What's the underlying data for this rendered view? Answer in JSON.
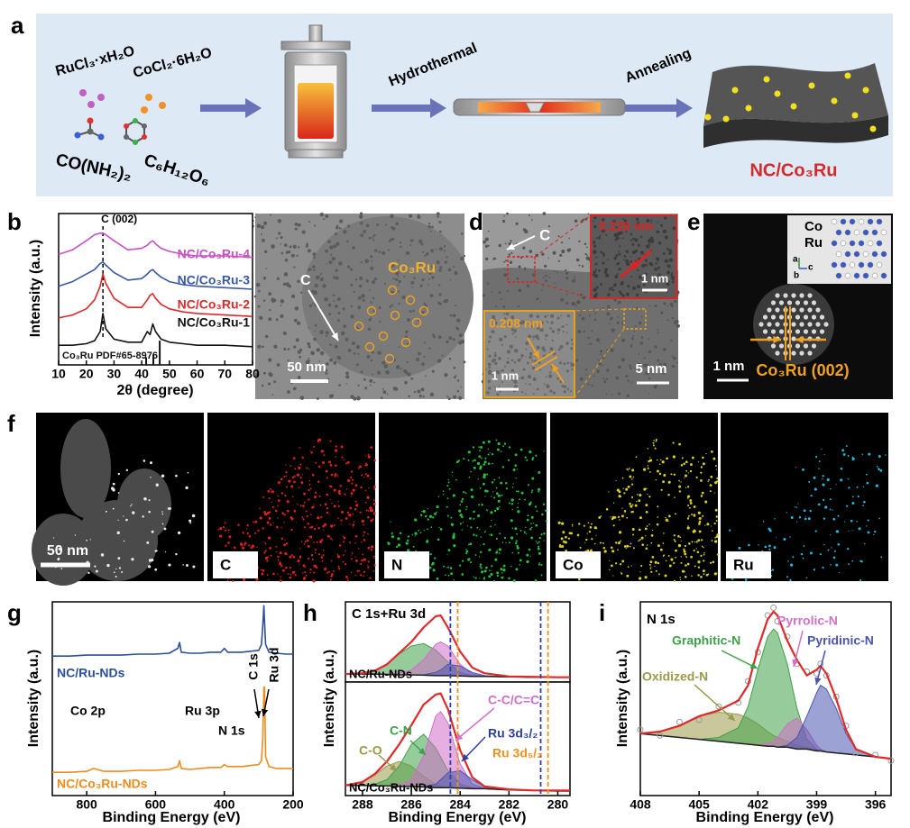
{
  "figure": {
    "panel_labels": [
      "a",
      "b",
      "c",
      "d",
      "e",
      "f",
      "g",
      "h",
      "i"
    ],
    "a": {
      "reagents": [
        "RuCl₃·xH₂O",
        "CoCl₂·6H₂O",
        "CO(NH₂)₂",
        "C₆H₁₂O₆"
      ],
      "steps": [
        "Hydrothermal",
        "Annealing"
      ],
      "product": "NC/Co₃Ru"
    },
    "c": {
      "labels": [
        "C",
        "Co₃Ru"
      ],
      "scale_bar": "50 nm"
    },
    "d": {
      "labels": [
        "C"
      ],
      "lattice": [
        "0.226 nm",
        "0.208 nm"
      ],
      "scale_bars": [
        "1 nm",
        "1 nm",
        "5 nm"
      ]
    },
    "e": {
      "legend": [
        "Co",
        "Ru"
      ],
      "axes": [
        "a",
        "c",
        "b"
      ],
      "scale_bar": "1 nm",
      "plane": "Co₃Ru (002)"
    },
    "f": {
      "scale_bar": "50 nm",
      "maps": [
        "C",
        "N",
        "Co",
        "Ru"
      ]
    },
    "g_labels": [
      "Co 2p",
      "Ru 3p",
      "N 1s",
      "C 1s",
      "Ru 3d"
    ]
  },
  "chart_data": [
    {
      "type": "line",
      "xlabel": "2θ (degree)",
      "ylabel": "Intensity (a.u.)",
      "xlim": [
        10,
        80
      ],
      "ylim": [
        0,
        100
      ],
      "xticks": [
        10,
        20,
        30,
        40,
        50,
        60,
        70,
        80
      ],
      "annotation": "C (002)",
      "annotation_x": 26,
      "x": [
        10,
        15,
        20,
        23,
        25,
        26,
        27,
        30,
        35,
        40,
        42,
        43,
        44,
        45,
        47,
        50,
        55,
        60,
        70,
        80
      ],
      "series": [
        {
          "name": "NC/Co₃Ru-4",
          "color": "#c851c6",
          "values": [
            73,
            76,
            82,
            86,
            87,
            87,
            86,
            82,
            76,
            77,
            79,
            81,
            82,
            80,
            77,
            75,
            73,
            72,
            72,
            71
          ]
        },
        {
          "name": "NC/Co₃Ru-3",
          "color": "#3a57a7",
          "values": [
            52,
            55,
            60,
            63,
            67,
            68,
            66,
            61,
            56,
            57,
            60,
            62,
            63,
            61,
            58,
            55,
            53,
            52,
            51,
            50
          ]
        },
        {
          "name": "NC/Co₃Ru-2",
          "color": "#e02828",
          "values": [
            31,
            33,
            37,
            43,
            52,
            60,
            54,
            44,
            38,
            38,
            43,
            46,
            47,
            44,
            40,
            37,
            35,
            34,
            33,
            32
          ]
        },
        {
          "name": "NC/Co₃Ru-1",
          "color": "#111111",
          "values": [
            13,
            13,
            14,
            16,
            22,
            34,
            24,
            17,
            15,
            15,
            22,
            20,
            27,
            22,
            17,
            15,
            14,
            13,
            13,
            12
          ]
        }
      ],
      "reference": {
        "label": "Co₃Ru PDF#65-8976",
        "color": "#111111",
        "x": [
          41.6,
          44.2,
          46.5
        ],
        "values": [
          5,
          7,
          16
        ]
      }
    },
    {
      "type": "line",
      "xlabel": "Binding Energy (eV)",
      "ylabel": "Intensity (a.u.)",
      "xlim": [
        900,
        200
      ],
      "ylim": [
        0,
        100
      ],
      "xticks": [
        800,
        600,
        400,
        200
      ],
      "x": [
        900,
        850,
        800,
        780,
        750,
        700,
        650,
        600,
        560,
        535,
        530,
        525,
        500,
        470,
        440,
        410,
        400,
        390,
        350,
        300,
        292,
        288,
        285,
        283,
        280,
        270,
        250,
        220,
        200
      ],
      "series": [
        {
          "name": "NC/Ru-NDs",
          "color": "#2b4f9a",
          "values": [
            72,
            72,
            72.5,
            72.5,
            72.5,
            72.5,
            73,
            73,
            73.5,
            76,
            79,
            74,
            73.5,
            73.5,
            74,
            74,
            76,
            74,
            74,
            75,
            78,
            88,
            98,
            90,
            78,
            74,
            73.5,
            73,
            73
          ]
        },
        {
          "name": "NC/Co₃Ru-NDs",
          "color": "#f08c1e",
          "values": [
            12,
            12,
            12.5,
            14,
            12.5,
            12.5,
            13,
            13,
            13.5,
            15,
            18,
            14,
            13.5,
            14,
            14.5,
            14.5,
            16,
            15,
            15,
            16,
            18,
            30,
            56,
            56,
            20,
            15,
            14,
            14,
            14
          ]
        }
      ]
    },
    {
      "type": "line",
      "label": "C 1s+Ru 3d",
      "sample": "NC/Ru-NDs",
      "xlim": [
        288.7,
        279.5
      ],
      "ylim": [
        0,
        100
      ],
      "x": [
        288.7,
        288,
        287.5,
        287,
        286.5,
        286,
        285.5,
        285,
        284.8,
        284.5,
        284,
        283.5,
        283,
        282,
        281,
        280,
        279.5
      ],
      "baseline": {
        "color": "#222222",
        "values": [
          10,
          10,
          10,
          9.5,
          9,
          9,
          8.5,
          8,
          8,
          8,
          7.5,
          7,
          7,
          6.5,
          6,
          6,
          6
        ]
      },
      "series": [
        {
          "color": "#3fa04a",
          "fill": true,
          "values": [
            10,
            11,
            14,
            22,
            35,
            45,
            48,
            40,
            34,
            25,
            12,
            8,
            7,
            6.5,
            6,
            6,
            6
          ]
        },
        {
          "color": "#d070c8",
          "fill": true,
          "values": [
            10,
            10,
            10,
            10,
            11,
            15,
            28,
            47,
            50,
            45,
            22,
            10,
            7,
            6.5,
            6,
            6,
            6
          ]
        },
        {
          "color": "#4a55b0",
          "fill": true,
          "values": [
            10,
            10,
            10,
            9.5,
            9,
            9,
            9,
            12,
            15,
            22,
            20,
            12,
            8,
            6.5,
            6,
            6,
            6
          ]
        },
        {
          "color": "#e02a2a",
          "fill": false,
          "values": [
            10,
            11,
            14,
            22,
            36,
            50,
            68,
            82,
            83,
            68,
            38,
            18,
            11,
            7,
            6.5,
            6,
            6
          ]
        }
      ]
    },
    {
      "type": "line",
      "sample": "NC/Co₃Ru-NDs",
      "xlabel": "Binding Energy (eV)",
      "ylabel": "Intensity (a.u.)",
      "xlim": [
        288.7,
        279.5
      ],
      "ylim": [
        0,
        100
      ],
      "xticks": [
        288,
        286,
        284,
        282,
        280
      ],
      "x": [
        288.7,
        288,
        287.5,
        287,
        286.5,
        286,
        285.5,
        285,
        284.8,
        284.5,
        284,
        283.5,
        283,
        282,
        281,
        280,
        279.5
      ],
      "baseline": {
        "color": "#222222",
        "values": [
          9,
          9,
          8.5,
          8.5,
          8,
          8,
          7.5,
          7,
          7,
          7,
          6.5,
          6,
          6,
          5,
          4.5,
          4,
          4
        ]
      },
      "series": [
        {
          "name": "C-O",
          "color": "#9a9a4a",
          "fill": true,
          "values": [
            9,
            12,
            18,
            26,
            30,
            26,
            17,
            10,
            8,
            7,
            6.5,
            6,
            6,
            5,
            4.5,
            4,
            4
          ]
        },
        {
          "name": "C-N",
          "color": "#3fa04a",
          "fill": true,
          "values": [
            9,
            9,
            10,
            14,
            26,
            45,
            54,
            42,
            34,
            22,
            10,
            7,
            6,
            5,
            4.5,
            4,
            4
          ]
        },
        {
          "name": "C-C/C=C",
          "color": "#d070c8",
          "fill": true,
          "values": [
            9,
            9,
            8.5,
            8.5,
            9,
            14,
            35,
            70,
            74,
            64,
            28,
            10,
            6.5,
            5,
            4.5,
            4,
            4
          ]
        },
        {
          "color": "#4a55b0",
          "fill": true,
          "values": [
            9,
            9,
            8.5,
            8.5,
            8,
            8,
            8,
            10,
            14,
            20,
            22,
            14,
            8,
            5.5,
            4.5,
            4,
            4
          ]
        },
        {
          "color": "#e02a2a",
          "fill": false,
          "values": [
            9,
            12,
            19,
            30,
            45,
            62,
            80,
            89,
            90,
            76,
            40,
            16,
            8,
            5.5,
            4.5,
            4.5,
            4.5
          ]
        }
      ],
      "reference_lines": [
        {
          "label": "Ru 3d₃/₂",
          "color": "#2f3f9f",
          "x": [
            284.4,
            280.7
          ]
        },
        {
          "label": "Ru 3d₅/₂",
          "color": "#f0901e",
          "x": [
            284.1,
            280.4
          ]
        }
      ]
    },
    {
      "type": "line",
      "label": "N 1s",
      "xlabel": "Binding Energy (eV)",
      "ylabel": "Intensity (a.u.)",
      "xlim": [
        408,
        395.2
      ],
      "ylim": [
        0,
        100
      ],
      "xticks": [
        408,
        405,
        402,
        399,
        396
      ],
      "x": [
        408,
        407,
        406,
        405,
        404,
        403,
        402.5,
        402,
        401.5,
        401.2,
        401,
        400.5,
        400,
        399.5,
        399,
        398.8,
        398.5,
        398,
        397.5,
        397,
        396,
        395.2
      ],
      "baseline": {
        "color": "#222222",
        "values": [
          32,
          31,
          30,
          29,
          28,
          27,
          26.5,
          26,
          25.5,
          25.5,
          25,
          25,
          24,
          24,
          23,
          23,
          22.5,
          22,
          21.5,
          21,
          20,
          19
        ]
      },
      "points": {
        "color": "#999999",
        "values": [
          34,
          31,
          38,
          39,
          46,
          48,
          59,
          74,
          93,
          97,
          90,
          82,
          68,
          64,
          63,
          68,
          62,
          51,
          36,
          22,
          21,
          18
        ]
      },
      "series": [
        {
          "name": "Oxidized-N",
          "color": "#9a9a4a",
          "fill": true,
          "values": [
            32,
            33,
            36,
            41,
            43,
            42,
            40,
            37,
            33,
            31,
            30,
            28,
            26,
            25,
            23.5,
            23,
            22.5,
            22,
            21.5,
            21,
            20,
            19
          ]
        },
        {
          "name": "Graphitic-N",
          "color": "#3fa04a",
          "fill": true,
          "values": [
            32,
            31,
            30,
            29,
            30,
            35,
            46,
            65,
            82,
            86,
            84,
            68,
            45,
            29,
            24,
            23,
            22.5,
            22,
            21.5,
            21,
            20,
            19
          ]
        },
        {
          "name": "Pyrrolic-N",
          "color": "#d070c8",
          "fill": true,
          "values": [
            32,
            31,
            30,
            29,
            28,
            27,
            26.5,
            26,
            27,
            28,
            30,
            37,
            40,
            34,
            26,
            24,
            22.5,
            22,
            21.5,
            21,
            20,
            19
          ]
        },
        {
          "name": "Pyridinic-N",
          "color": "#4a55b0",
          "fill": true,
          "values": [
            32,
            31,
            30,
            29,
            28,
            27,
            26.5,
            26,
            25.5,
            25.5,
            25,
            26,
            30,
            41,
            53,
            57,
            55,
            45,
            32,
            24,
            20,
            19
          ]
        },
        {
          "color": "#e02a2a",
          "fill": false,
          "values": [
            32,
            33,
            36,
            41,
            44,
            49,
            57,
            76,
            91,
            95,
            93,
            80,
            70,
            62,
            65,
            67,
            63,
            50,
            34,
            24,
            20,
            19
          ]
        }
      ]
    }
  ]
}
